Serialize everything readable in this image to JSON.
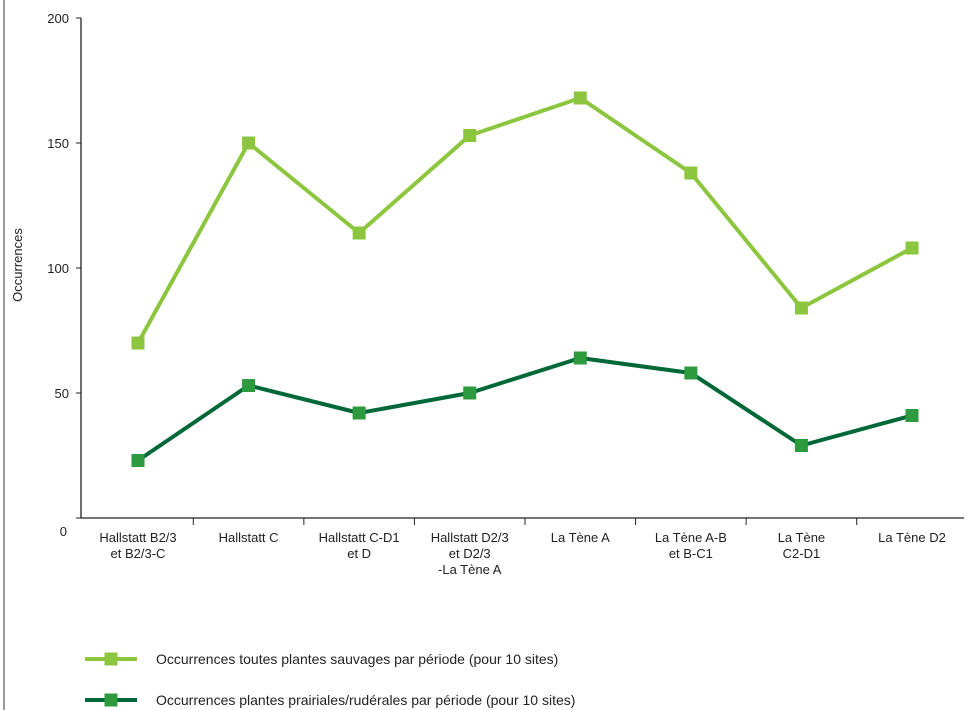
{
  "chart_data": {
    "type": "line",
    "title": "",
    "xlabel": "",
    "ylabel": "Occurrences",
    "ylim": [
      0,
      200
    ],
    "yticks": [
      0,
      50,
      100,
      150,
      200
    ],
    "categories": [
      [
        "Hallstatt B2/3",
        "et B2/3-C"
      ],
      [
        "Hallstatt C"
      ],
      [
        "Hallstatt C-D1",
        "et D"
      ],
      [
        "Hallstatt D2/3",
        "et D2/3",
        "-La Tène A"
      ],
      [
        "La Tène A"
      ],
      [
        "La Tène A-B",
        "et B-C1"
      ],
      [
        "La Tène",
        "C2-D1"
      ],
      [
        "La Tène D2"
      ]
    ],
    "series": [
      {
        "name": "Occurrences toutes plantes sauvages par période (pour 10 sites)",
        "color": "#8cc63f",
        "values": [
          70,
          150,
          114,
          153,
          168,
          138,
          84,
          108
        ]
      },
      {
        "name": "Occurrences plantes prairiales/rudérales par période (pour 10 sites)",
        "color": "#006838",
        "marker_color": "#2e9a3e",
        "values": [
          23,
          53,
          42,
          50,
          64,
          58,
          29,
          41
        ]
      }
    ],
    "grid": false,
    "legend_position": "bottom-left"
  }
}
